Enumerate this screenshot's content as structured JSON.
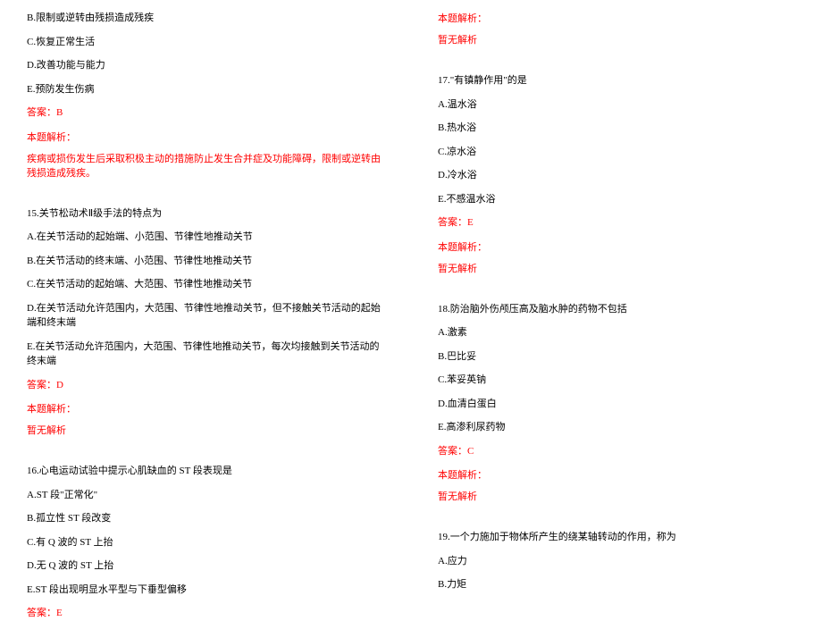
{
  "col1": {
    "q14": {
      "optB": "B.限制或逆转由残损造成残疾",
      "optC": "C.恢复正常生活",
      "optD": "D.改善功能与能力",
      "optE": "E.预防发生伤病",
      "answer": "答案：B",
      "analysisLabel": "本题解析：",
      "analysisText": "疾病或损伤发生后采取积极主动的措施防止发生合并症及功能障碍，限制或逆转由残损造成残疾。"
    },
    "q15": {
      "stem": "15.关节松动术Ⅱ级手法的特点为",
      "optA": "A.在关节活动的起始端、小范围、节律性地推动关节",
      "optB": "B.在关节活动的终末端、小范围、节律性地推动关节",
      "optC": "C.在关节活动的起始端、大范围、节律性地推动关节",
      "optD": "D.在关节活动允许范围内，大范围、节律性地推动关节，但不接触关节活动的起始端和终末端",
      "optE": "E.在关节活动允许范围内，大范围、节律性地推动关节，每次均接触到关节活动的终末端",
      "answer": "答案：D",
      "analysisLabel": "本题解析：",
      "analysisText": "暂无解析"
    },
    "q16": {
      "stem": "16.心电运动试验中提示心肌缺血的 ST 段表现是",
      "optA": "A.ST 段\"正常化\"",
      "optB": "B.孤立性 ST 段改变",
      "optC": "C.有 Q 波的 ST 上抬",
      "optD": "D.无 Q 波的 ST 上抬",
      "optE": "E.ST 段出现明显水平型与下垂型偏移",
      "answer": "答案：E"
    }
  },
  "col2": {
    "q16": {
      "analysisLabel": "本题解析：",
      "analysisText": "暂无解析"
    },
    "q17": {
      "stem": "17.\"有镇静作用\"的是",
      "optA": "A.温水浴",
      "optB": "B.热水浴",
      "optC": "C.凉水浴",
      "optD": "D.冷水浴",
      "optE": "E.不感温水浴",
      "answer": "答案：E",
      "analysisLabel": "本题解析：",
      "analysisText": "暂无解析"
    },
    "q18": {
      "stem": "18.防治脑外伤颅压高及脑水肿的药物不包括",
      "optA": "A.激素",
      "optB": "B.巴比妥",
      "optC": "C.苯妥英钠",
      "optD": "D.血清白蛋白",
      "optE": "E.高渗利尿药物",
      "answer": "答案：C",
      "analysisLabel": "本题解析：",
      "analysisText": "暂无解析"
    },
    "q19": {
      "stem": "19.一个力施加于物体所产生的绕某轴转动的作用，称为",
      "optA": "A.应力",
      "optB": "B.力矩"
    }
  }
}
